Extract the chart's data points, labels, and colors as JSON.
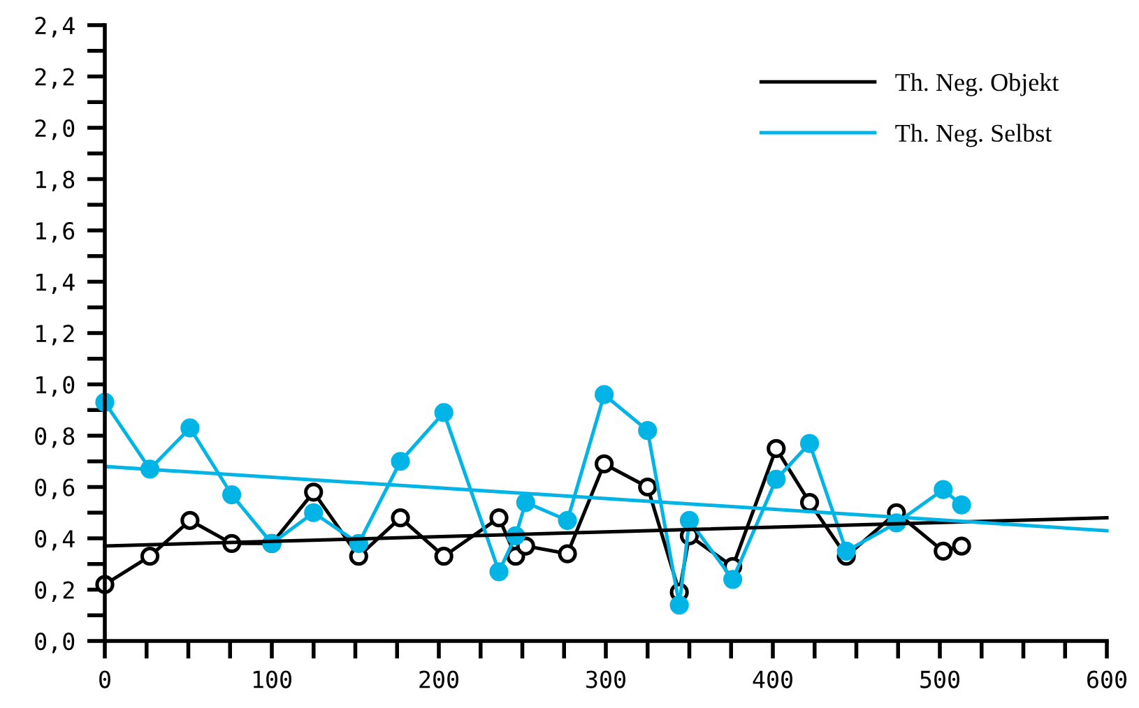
{
  "chart_data": {
    "type": "line",
    "xlim": [
      0,
      600
    ],
    "xticks": [
      0,
      {
        "value": 25,
        "label": null
      },
      {
        "value": 50,
        "label": null
      },
      {
        "value": 75,
        "label": null
      },
      100,
      {
        "value": 125,
        "label": null
      },
      {
        "value": 150,
        "label": null
      },
      {
        "value": 175,
        "label": null
      },
      200,
      {
        "value": 225,
        "label": null
      },
      {
        "value": 250,
        "label": null
      },
      {
        "value": 275,
        "label": null
      },
      300,
      {
        "value": 325,
        "label": null
      },
      {
        "value": 350,
        "label": null
      },
      {
        "value": 375,
        "label": null
      },
      400,
      {
        "value": 425,
        "label": null
      },
      {
        "value": 450,
        "label": null
      },
      {
        "value": 475,
        "label": null
      },
      500,
      {
        "value": 525,
        "label": null
      },
      {
        "value": 550,
        "label": null
      },
      {
        "value": 575,
        "label": null
      },
      600
    ],
    "ylim": [
      0,
      2.4
    ],
    "yticks": [
      {
        "value": 0,
        "label": "0,0"
      },
      {
        "value": 0.1,
        "label": null
      },
      {
        "value": 0.2,
        "label": "0,2"
      },
      {
        "value": 0.3,
        "label": null
      },
      {
        "value": 0.4,
        "label": "0,4"
      },
      {
        "value": 0.5,
        "label": null
      },
      {
        "value": 0.6,
        "label": "0,6"
      },
      {
        "value": 0.7,
        "label": null
      },
      {
        "value": 0.8,
        "label": "0,8"
      },
      {
        "value": 0.9,
        "label": null
      },
      {
        "value": 1.0,
        "label": "1,0"
      },
      {
        "value": 1.1,
        "label": null
      },
      {
        "value": 1.2,
        "label": "1,2"
      },
      {
        "value": 1.3,
        "label": null
      },
      {
        "value": 1.4,
        "label": "1,4"
      },
      {
        "value": 1.5,
        "label": null
      },
      {
        "value": 1.6,
        "label": "1,6"
      },
      {
        "value": 1.7,
        "label": null
      },
      {
        "value": 1.8,
        "label": "1,8"
      },
      {
        "value": 1.9,
        "label": null
      },
      {
        "value": 2.0,
        "label": "2,0"
      },
      {
        "value": 2.1,
        "label": null
      },
      {
        "value": 2.2,
        "label": "2,2"
      },
      {
        "value": 2.3,
        "label": null
      },
      {
        "value": 2.4,
        "label": "2,4"
      }
    ],
    "grid": false,
    "legend": "top right",
    "line_style": "solid",
    "series": [
      {
        "name": "Th. Neg. Objekt",
        "color": "#000000",
        "marker": "circle",
        "x": [
          0,
          27,
          51,
          76,
          100,
          125,
          152,
          177,
          203,
          236,
          246,
          252,
          277,
          299,
          325,
          344,
          350,
          376,
          402,
          422,
          444,
          474,
          502,
          513
        ],
        "values": [
          0.22,
          0.33,
          0.47,
          0.38,
          0.38,
          0.58,
          0.33,
          0.48,
          0.33,
          0.48,
          0.33,
          0.37,
          0.34,
          0.69,
          0.6,
          0.19,
          0.41,
          0.29,
          0.75,
          0.54,
          0.33,
          0.5,
          0.35,
          0.37
        ]
      },
      {
        "name": "Th. Neg. Selbst",
        "color": "#00b4e6",
        "marker": "circle",
        "x": [
          0,
          27,
          51,
          76,
          100,
          125,
          152,
          177,
          203,
          236,
          246,
          252,
          277,
          299,
          325,
          344,
          350,
          376,
          402,
          422,
          444,
          474,
          502,
          513
        ],
        "values": [
          0.93,
          0.67,
          0.83,
          0.57,
          0.38,
          0.5,
          0.38,
          0.7,
          0.89,
          0.27,
          0.41,
          0.54,
          0.47,
          0.96,
          0.82,
          0.14,
          0.47,
          0.24,
          0.63,
          0.77,
          0.35,
          0.46,
          0.59,
          0.53
        ]
      },
      {
        "type": "line",
        "color": "#000000",
        "marker": "none",
        "x": [
          0,
          600
        ],
        "values": [
          0.37,
          0.48
        ]
      },
      {
        "type": "line",
        "color": "#00b4e6",
        "marker": "none",
        "x": [
          0,
          600
        ],
        "values": [
          0.68,
          0.43
        ]
      }
    ]
  }
}
